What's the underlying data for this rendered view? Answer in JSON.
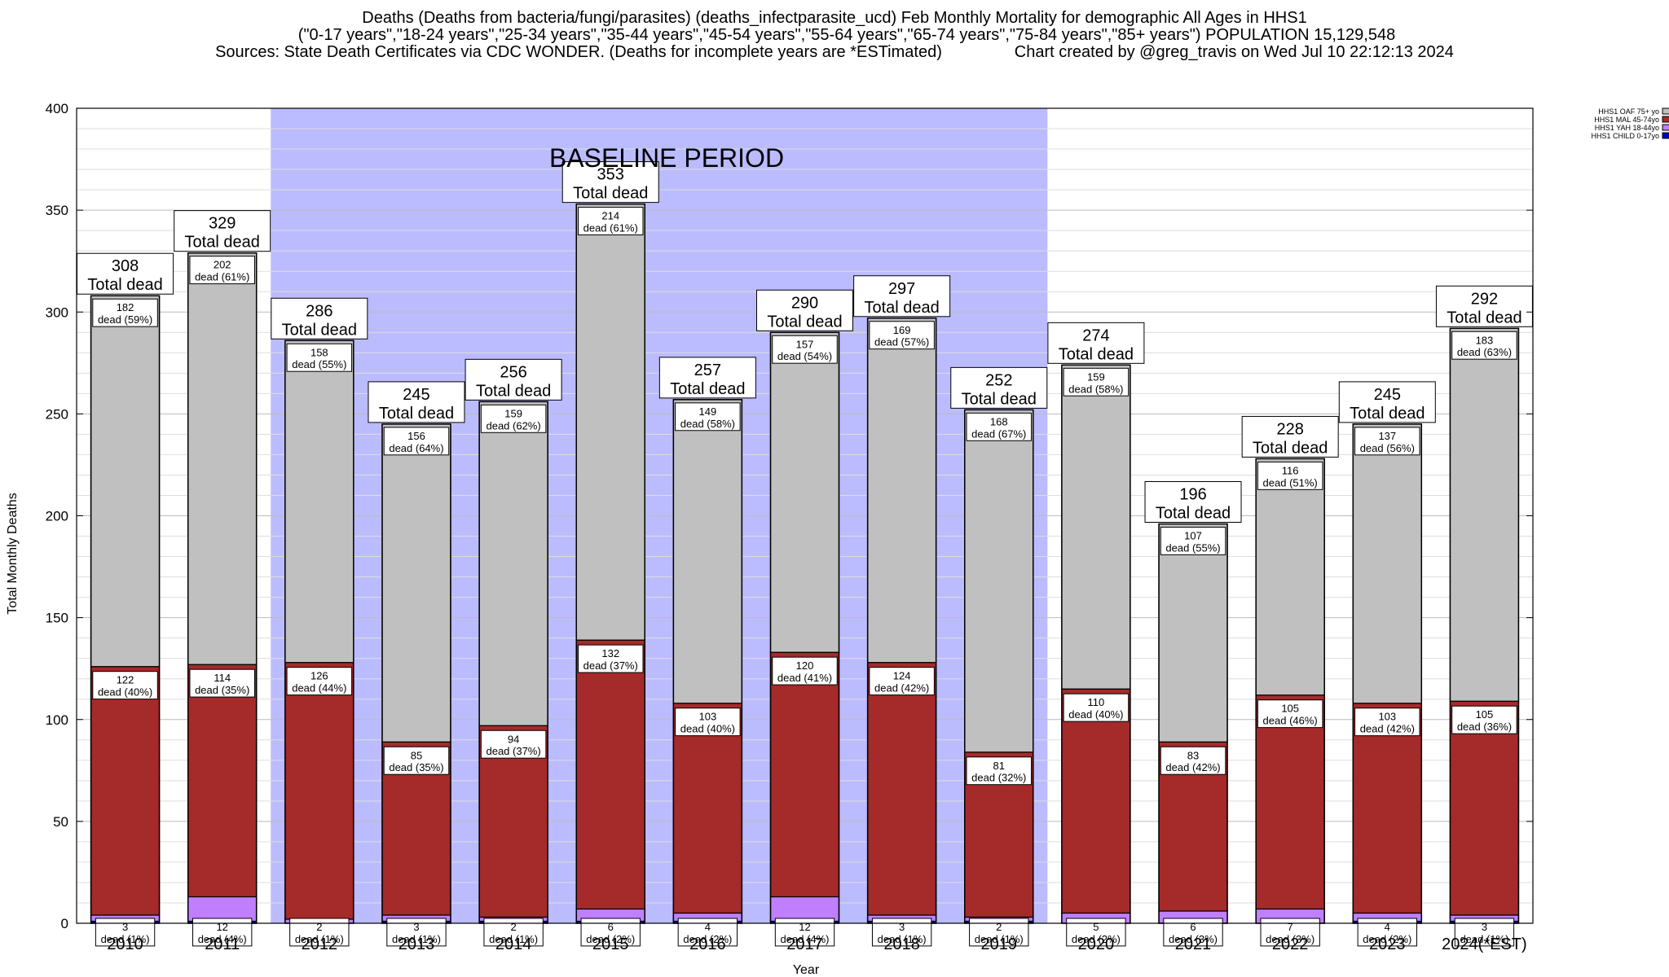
{
  "title": {
    "line1": "Deaths (Deaths from bacteria/fungi/parasites) (deaths_infectparasite_ucd) Feb Monthly Mortality for demographic All Ages in HHS1",
    "line2": "(\"0-17 years\",\"18-24 years\",\"25-34 years\",\"35-44 years\",\"45-54 years\",\"55-64 years\",\"65-74 years\",\"75-84 years\",\"85+ years\") POPULATION 15,129,548",
    "line3": "Sources: State Death Certificates via CDC WONDER. (Deaths for incomplete years are *ESTimated)                Chart created by @greg_travis on Wed Jul 10 22:12:13 2024"
  },
  "baseline_label": "BASELINE PERIOD",
  "total_word": "Total dead",
  "dead_word": "dead",
  "colors": {
    "oaf": "#c0c0c0",
    "mal": "#a52a2a",
    "yah": "#bf7fff",
    "child": "#0000cd",
    "baseline": "#bbbbff"
  },
  "chart_data": {
    "type": "bar",
    "stacked": true,
    "xlabel": "Year",
    "ylabel": "Total Monthly Deaths",
    "ylim": [
      0,
      400
    ],
    "yticks": [
      0,
      50,
      100,
      150,
      200,
      250,
      300,
      350,
      400
    ],
    "grid": true,
    "legend_position": "top-right",
    "baseline_period": [
      "2012",
      "2019"
    ],
    "categories": [
      "2010",
      "2011",
      "2012",
      "2013",
      "2014",
      "2015",
      "2016",
      "2017",
      "2018",
      "2019",
      "2020",
      "2021",
      "2022",
      "2023",
      "2024(*EST)"
    ],
    "totals": [
      308,
      329,
      286,
      245,
      256,
      353,
      257,
      290,
      297,
      252,
      274,
      196,
      228,
      245,
      292
    ],
    "series": [
      {
        "name": "HHS1 CHILD 0-17yo",
        "key": "child",
        "values": [
          1,
          1,
          0,
          1,
          1,
          1,
          1,
          1,
          1,
          1,
          0,
          0,
          0,
          1,
          1
        ]
      },
      {
        "name": "HHS1 YAH 18-44yo",
        "key": "yah",
        "values": [
          3,
          12,
          2,
          3,
          2,
          6,
          4,
          12,
          3,
          2,
          5,
          6,
          7,
          4,
          3
        ],
        "pct": [
          "(1%)",
          "(4%)",
          "(1%)",
          "(1%)",
          "(1%)",
          "(2%)",
          "(2%)",
          "(4%)",
          "(1%)",
          "(1%)",
          "(2%)",
          "(3%)",
          "(3%)",
          "(2%)",
          "(1%)"
        ]
      },
      {
        "name": "HHS1 MAL 45-74yo",
        "key": "mal",
        "values": [
          122,
          114,
          126,
          85,
          94,
          132,
          103,
          120,
          124,
          81,
          110,
          83,
          105,
          103,
          105
        ],
        "pct": [
          "(40%)",
          "(35%)",
          "(44%)",
          "(35%)",
          "(37%)",
          "(37%)",
          "(40%)",
          "(41%)",
          "(42%)",
          "(32%)",
          "(40%)",
          "(42%)",
          "(46%)",
          "(42%)",
          "(36%)"
        ]
      },
      {
        "name": "HHS1 OAF 75+ yo",
        "key": "oaf",
        "values": [
          182,
          202,
          158,
          156,
          159,
          214,
          149,
          157,
          169,
          168,
          159,
          107,
          116,
          137,
          183
        ],
        "pct": [
          "(59%)",
          "(61%)",
          "(55%)",
          "(64%)",
          "(62%)",
          "(61%)",
          "(58%)",
          "(54%)",
          "(57%)",
          "(67%)",
          "(58%)",
          "(55%)",
          "(51%)",
          "(56%)",
          "(63%)"
        ]
      }
    ],
    "legend_order": [
      "oaf",
      "mal",
      "yah",
      "child"
    ]
  }
}
